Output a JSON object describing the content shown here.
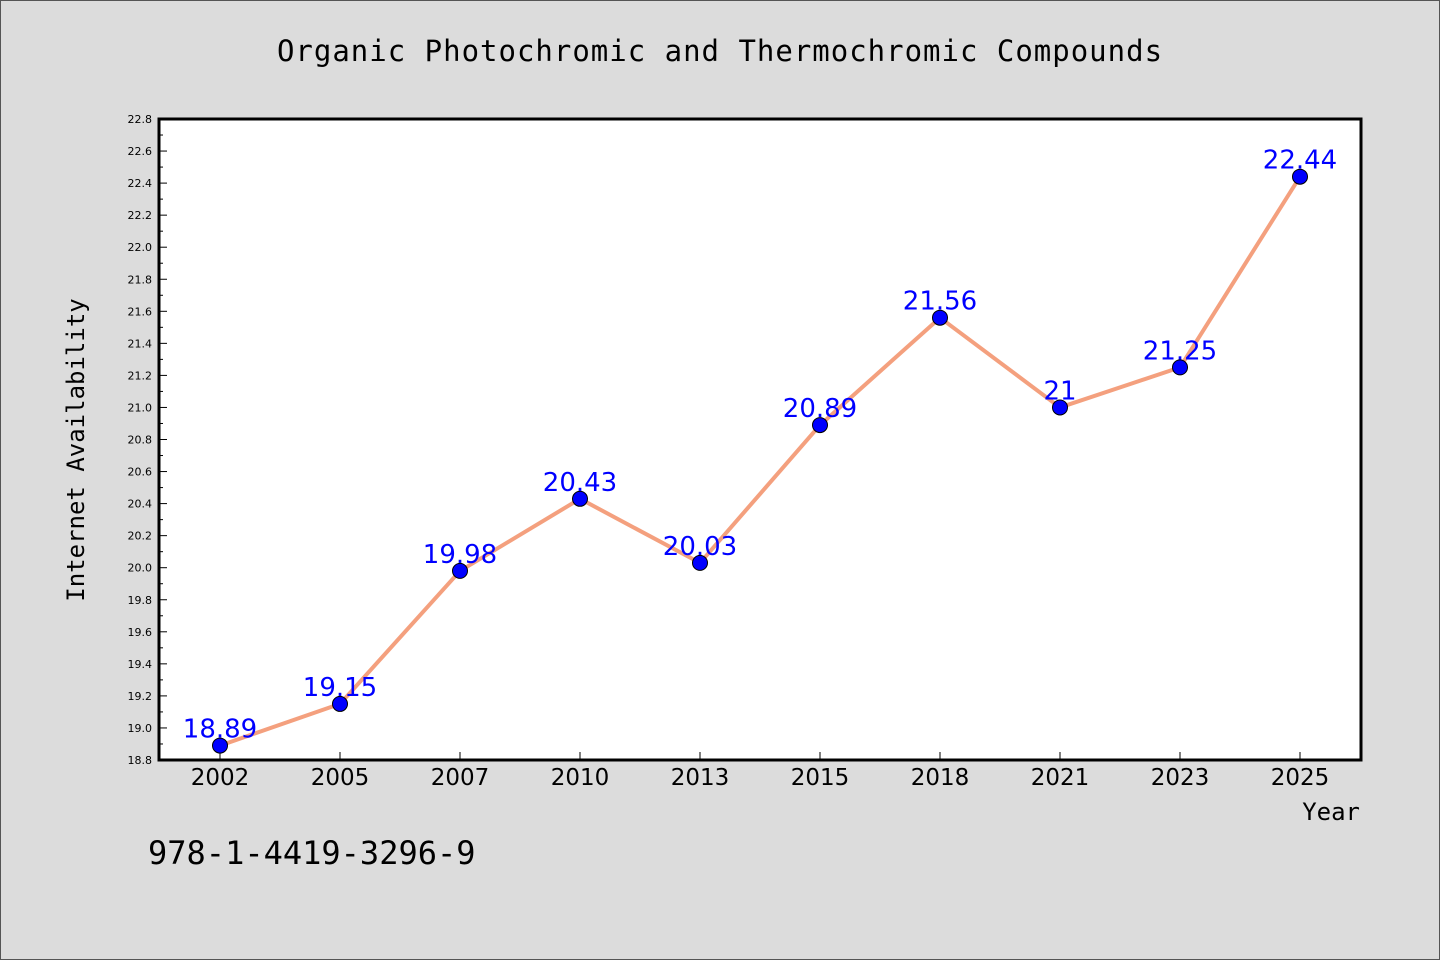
{
  "chart_data": {
    "type": "line",
    "title": "Organic Photochromic and Thermochromic Compounds",
    "xlabel": "Year",
    "ylabel": "Internet Availability",
    "categories": [
      "2002",
      "2005",
      "2007",
      "2010",
      "2013",
      "2015",
      "2018",
      "2021",
      "2023",
      "2025"
    ],
    "series": [
      {
        "values": [
          18.89,
          19.15,
          19.98,
          20.43,
          20.03,
          20.89,
          21.56,
          21.0,
          21.25,
          22.44
        ],
        "labels": [
          "18.89",
          "19.15",
          "19.98",
          "20.43",
          "20.03",
          "20.89",
          "21.56",
          "21",
          "21.25",
          "22.44"
        ]
      }
    ],
    "ylim": [
      18.8,
      22.8
    ],
    "yticks": [
      "18.8",
      "19.0",
      "19.2",
      "19.4",
      "19.6",
      "19.8",
      "20.0",
      "20.2",
      "20.4",
      "20.6",
      "20.8",
      "21.0",
      "21.2",
      "21.4",
      "21.6",
      "21.8",
      "22.0",
      "22.2",
      "22.4",
      "22.6",
      "22.8"
    ],
    "grid": false,
    "colors": {
      "line": "#f4a07e",
      "marker": "#0000ff",
      "label": "#0000ff",
      "background": "#dcdcdc",
      "plot_background": "#ffffff"
    }
  },
  "footer": {
    "isbn": "978-1-4419-3296-9"
  }
}
